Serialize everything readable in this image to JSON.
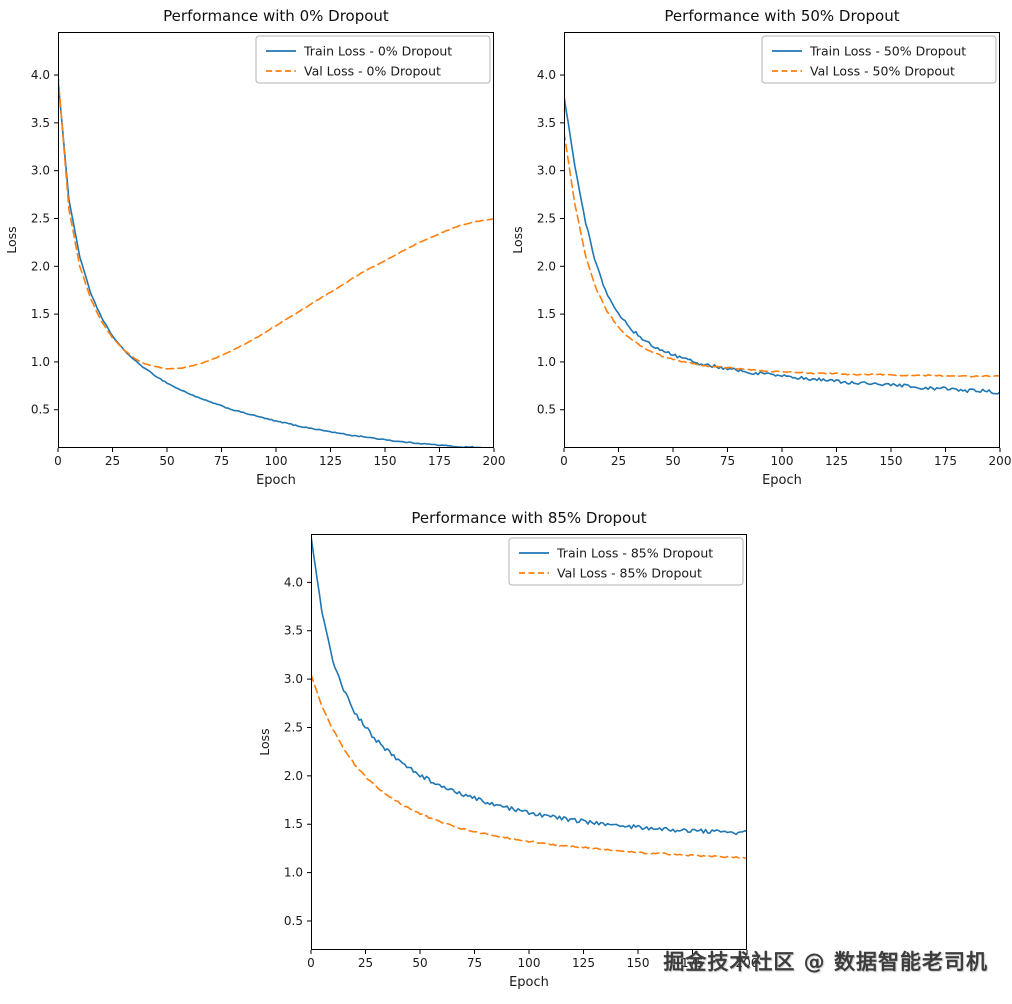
{
  "watermark": "掘金技术社区 @ 数据智能老司机",
  "colors": {
    "train": "#1f77b4",
    "val": "#ff7f0e",
    "text": "#1a1a1a",
    "spine": "#000000",
    "legend_border": "#b3b3b3"
  },
  "chart_data": [
    {
      "type": "line",
      "title": "Performance with 0% Dropout",
      "xlabel": "Epoch",
      "ylabel": "Loss",
      "xlim": [
        0,
        200
      ],
      "ylim": [
        0.1,
        4.45
      ],
      "xticks": [
        0,
        25,
        50,
        75,
        100,
        125,
        150,
        175,
        200
      ],
      "yticks": [
        0.5,
        1.0,
        1.5,
        2.0,
        2.5,
        3.0,
        3.5,
        4.0
      ],
      "legend_position": "top-right",
      "grid": false,
      "x_step": 5,
      "series": [
        {
          "name": "Train Loss - 0% Dropout",
          "color_key": "train",
          "line_style": "solid",
          "noise": 0.005,
          "values": [
            3.95,
            2.7,
            2.1,
            1.72,
            1.46,
            1.27,
            1.13,
            1.02,
            0.93,
            0.85,
            0.78,
            0.72,
            0.67,
            0.62,
            0.58,
            0.54,
            0.5,
            0.47,
            0.44,
            0.41,
            0.38,
            0.36,
            0.33,
            0.31,
            0.29,
            0.27,
            0.25,
            0.23,
            0.22,
            0.2,
            0.19,
            0.17,
            0.16,
            0.15,
            0.14,
            0.13,
            0.12,
            0.11,
            0.11,
            0.1,
            0.1
          ]
        },
        {
          "name": "Val Loss - 0% Dropout",
          "color_key": "val",
          "line_style": "dashed",
          "noise": 0.004,
          "values": [
            4.0,
            2.6,
            2.0,
            1.66,
            1.42,
            1.25,
            1.13,
            1.04,
            0.98,
            0.95,
            0.93,
            0.93,
            0.95,
            0.98,
            1.02,
            1.07,
            1.12,
            1.18,
            1.24,
            1.31,
            1.38,
            1.45,
            1.52,
            1.59,
            1.66,
            1.73,
            1.8,
            1.87,
            1.94,
            2.0,
            2.06,
            2.12,
            2.18,
            2.24,
            2.29,
            2.34,
            2.39,
            2.43,
            2.46,
            2.48,
            2.5
          ]
        }
      ]
    },
    {
      "type": "line",
      "title": "Performance with 50% Dropout",
      "xlabel": "Epoch",
      "ylabel": "Loss",
      "xlim": [
        0,
        200
      ],
      "ylim": [
        0.1,
        4.45
      ],
      "xticks": [
        0,
        25,
        50,
        75,
        100,
        125,
        150,
        175,
        200
      ],
      "yticks": [
        0.5,
        1.0,
        1.5,
        2.0,
        2.5,
        3.0,
        3.5,
        4.0
      ],
      "legend_position": "top-right",
      "grid": false,
      "x_step": 5,
      "series": [
        {
          "name": "Train Loss - 50% Dropout",
          "color_key": "train",
          "line_style": "solid",
          "noise": 0.018,
          "values": [
            3.78,
            3.05,
            2.45,
            2.0,
            1.7,
            1.5,
            1.36,
            1.26,
            1.18,
            1.12,
            1.07,
            1.03,
            1.0,
            0.97,
            0.95,
            0.93,
            0.91,
            0.89,
            0.88,
            0.86,
            0.85,
            0.84,
            0.83,
            0.82,
            0.81,
            0.8,
            0.79,
            0.78,
            0.77,
            0.76,
            0.76,
            0.75,
            0.74,
            0.73,
            0.72,
            0.72,
            0.71,
            0.7,
            0.7,
            0.69,
            0.68
          ]
        },
        {
          "name": "Val Loss - 50% Dropout",
          "color_key": "val",
          "line_style": "dashed",
          "noise": 0.006,
          "values": [
            3.4,
            2.65,
            2.1,
            1.75,
            1.52,
            1.36,
            1.25,
            1.17,
            1.11,
            1.06,
            1.03,
            1.0,
            0.98,
            0.96,
            0.95,
            0.94,
            0.93,
            0.92,
            0.91,
            0.9,
            0.9,
            0.89,
            0.89,
            0.88,
            0.88,
            0.88,
            0.87,
            0.87,
            0.87,
            0.87,
            0.86,
            0.86,
            0.86,
            0.86,
            0.86,
            0.85,
            0.85,
            0.85,
            0.85,
            0.85,
            0.85
          ]
        }
      ]
    },
    {
      "type": "line",
      "title": "Performance with 85% Dropout",
      "xlabel": "Epoch",
      "ylabel": "Loss",
      "xlim": [
        0,
        200
      ],
      "ylim": [
        0.2,
        4.5
      ],
      "xticks": [
        0,
        25,
        50,
        75,
        100,
        125,
        150,
        175,
        200
      ],
      "yticks": [
        0.5,
        1.0,
        1.5,
        2.0,
        2.5,
        3.0,
        3.5,
        4.0
      ],
      "legend_position": "top-right",
      "grid": false,
      "x_step": 5,
      "series": [
        {
          "name": "Train Loss - 85% Dropout",
          "color_key": "train",
          "line_style": "solid",
          "noise": 0.022,
          "values": [
            4.48,
            3.7,
            3.2,
            2.88,
            2.66,
            2.5,
            2.37,
            2.26,
            2.16,
            2.08,
            2.01,
            1.95,
            1.9,
            1.85,
            1.81,
            1.77,
            1.73,
            1.7,
            1.67,
            1.64,
            1.62,
            1.6,
            1.58,
            1.56,
            1.54,
            1.53,
            1.51,
            1.5,
            1.49,
            1.48,
            1.47,
            1.46,
            1.45,
            1.44,
            1.44,
            1.43,
            1.43,
            1.42,
            1.42,
            1.41,
            1.41
          ]
        },
        {
          "name": "Val Loss - 85% Dropout",
          "color_key": "val",
          "line_style": "dashed",
          "noise": 0.008,
          "values": [
            3.05,
            2.72,
            2.48,
            2.28,
            2.12,
            1.99,
            1.89,
            1.8,
            1.73,
            1.66,
            1.61,
            1.56,
            1.52,
            1.48,
            1.45,
            1.42,
            1.4,
            1.38,
            1.36,
            1.34,
            1.32,
            1.31,
            1.29,
            1.28,
            1.27,
            1.26,
            1.25,
            1.24,
            1.23,
            1.22,
            1.21,
            1.2,
            1.2,
            1.19,
            1.18,
            1.18,
            1.17,
            1.17,
            1.16,
            1.16,
            1.15
          ]
        }
      ]
    }
  ]
}
